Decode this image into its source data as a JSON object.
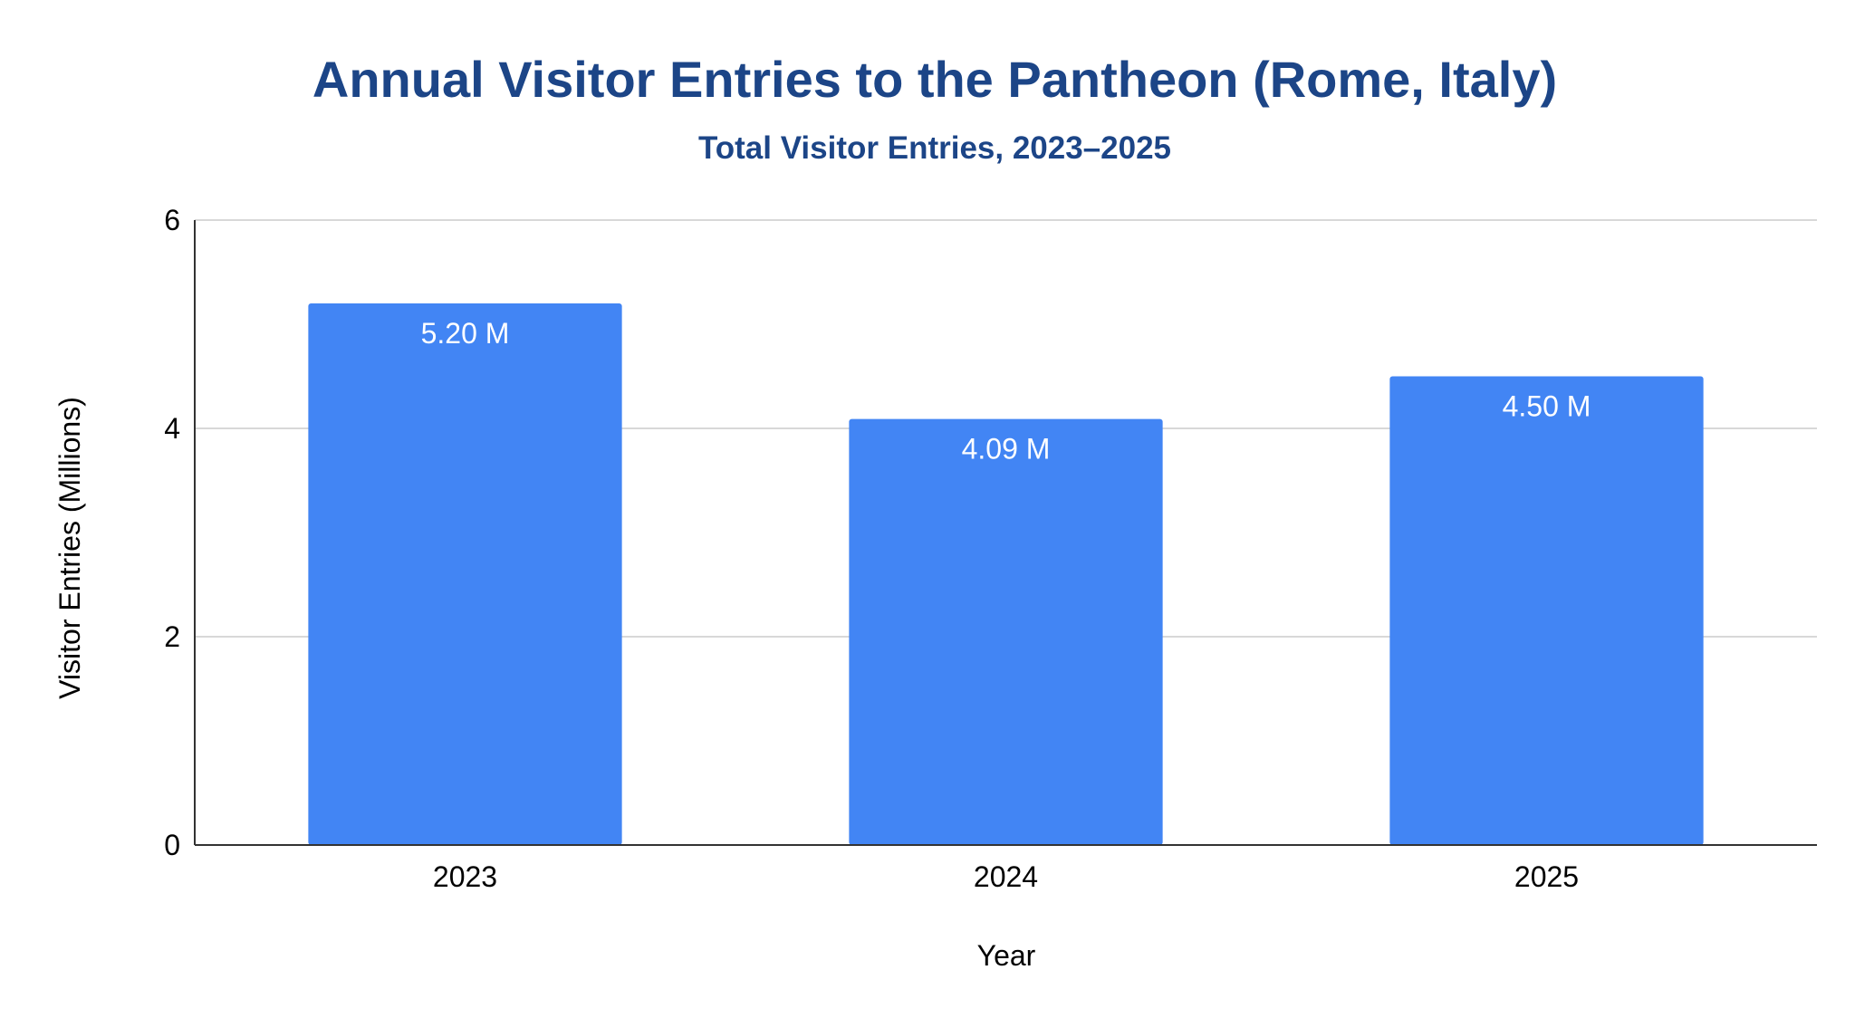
{
  "chart_data": {
    "type": "bar",
    "title": "Annual Visitor Entries to the Pantheon (Rome, Italy)",
    "subtitle": "Total Visitor Entries, 2023–2025",
    "xlabel": "Year",
    "ylabel": "Visitor Entries (Millions)",
    "categories": [
      "2023",
      "2024",
      "2025"
    ],
    "values": [
      5.2,
      4.09,
      4.5
    ],
    "data_labels": [
      "5.20 M",
      "4.09 M",
      "4.50 M"
    ],
    "ylim": [
      0,
      6
    ],
    "yticks": [
      0,
      2,
      4,
      6
    ],
    "grid": true,
    "bar_color": "#4285f4",
    "title_color": "#1c4587"
  }
}
